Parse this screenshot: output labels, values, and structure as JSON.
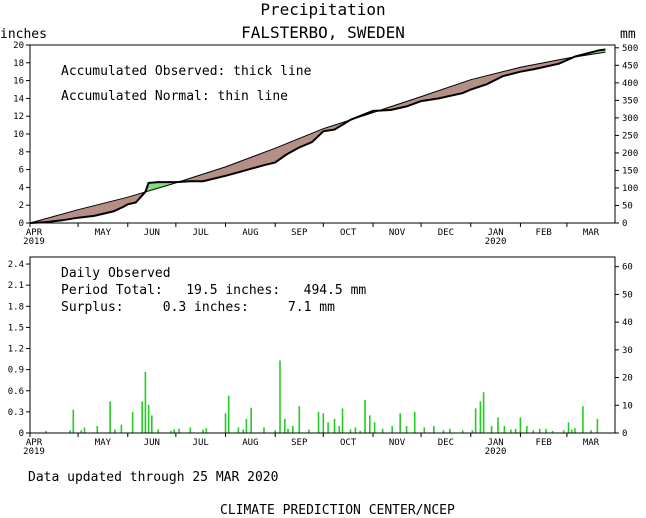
{
  "title": "Precipitation",
  "subtitle": "FALSTERBO, SWEDEN",
  "updated_text": "Data updated through 25 MAR 2020",
  "credit": "CLIMATE PREDICTION CENTER/NCEP",
  "colors": {
    "deficit_fill": "#b58f86",
    "surplus_fill": "#7fe07a",
    "daily_bar": "#22cc22",
    "axis": "#000000"
  },
  "chart_data": [
    {
      "type": "area",
      "left_unit_label": "inches",
      "right_unit_label": "mm",
      "annotations": [
        "Accumulated Observed: thick line",
        "Accumulated Normal: thin line"
      ],
      "x_tick_labels": [
        "APR",
        "MAY",
        "JUN",
        "JUL",
        "AUG",
        "SEP",
        "OCT",
        "NOV",
        "DEC",
        "JAN",
        "FEB",
        "MAR"
      ],
      "x_year_labels": [
        {
          "month": "APR",
          "year": "2019"
        },
        {
          "month": "JAN",
          "year": "2020"
        }
      ],
      "x_range_days": [
        0,
        365
      ],
      "month_start_days": [
        0,
        30,
        61,
        91,
        122,
        153,
        183,
        214,
        244,
        275,
        306,
        335
      ],
      "ylim_left": [
        0,
        20
      ],
      "y_ticks_left": [
        0,
        2,
        4,
        6,
        8,
        10,
        12,
        14,
        16,
        18,
        20
      ],
      "ylim_right": [
        0,
        508
      ],
      "y_ticks_right": [
        0,
        50,
        100,
        150,
        200,
        250,
        300,
        350,
        400,
        450,
        500
      ],
      "series": [
        {
          "name": "Accumulated Observed",
          "x_days": [
            0,
            10,
            20,
            30,
            40,
            52,
            58,
            61,
            66,
            72,
            74,
            80,
            91,
            100,
            108,
            122,
            130,
            138,
            146,
            153,
            160,
            168,
            176,
            183,
            190,
            200,
            214,
            225,
            235,
            244,
            255,
            270,
            275,
            285,
            295,
            306,
            315,
            330,
            340,
            355,
            359
          ],
          "values": [
            0.0,
            0.1,
            0.3,
            0.6,
            0.8,
            1.3,
            1.8,
            2.1,
            2.3,
            3.5,
            4.5,
            4.6,
            4.6,
            4.7,
            4.7,
            5.3,
            5.7,
            6.1,
            6.5,
            6.8,
            7.7,
            8.5,
            9.1,
            10.3,
            10.5,
            11.6,
            12.6,
            12.7,
            13.1,
            13.7,
            14.0,
            14.6,
            15.0,
            15.6,
            16.5,
            17.0,
            17.3,
            17.9,
            18.7,
            19.4,
            19.5
          ]
        },
        {
          "name": "Accumulated Normal",
          "x_days": [
            0,
            30,
            61,
            91,
            122,
            153,
            183,
            214,
            244,
            275,
            306,
            335,
            359
          ],
          "values": [
            0.0,
            1.5,
            2.9,
            4.5,
            6.3,
            8.4,
            10.6,
            12.4,
            14.2,
            16.1,
            17.5,
            18.5,
            19.2
          ]
        }
      ]
    },
    {
      "type": "bar",
      "annotations": [
        "Daily Observed",
        "Period Total:   19.5 inches:   494.5 mm",
        "Surplus:     0.3 inches:     7.1 mm"
      ],
      "period_total_inches": 19.5,
      "period_total_mm": 494.5,
      "surplus_inches": 0.3,
      "surplus_mm": 7.1,
      "x_tick_labels": [
        "APR",
        "MAY",
        "JUN",
        "JUL",
        "AUG",
        "SEP",
        "OCT",
        "NOV",
        "DEC",
        "JAN",
        "FEB",
        "MAR"
      ],
      "x_year_labels": [
        {
          "month": "APR",
          "year": "2019"
        },
        {
          "month": "JAN",
          "year": "2020"
        }
      ],
      "ylim_left": [
        0,
        2.5
      ],
      "y_ticks_left": [
        "0",
        "0.3",
        "0.6",
        "0.9",
        "1.2",
        "1.5",
        "1.8",
        "2.1",
        "2.4"
      ],
      "ylim_right": [
        0,
        63.5
      ],
      "y_ticks_right": [
        0,
        10,
        20,
        30,
        40,
        50,
        60
      ],
      "x_days": [
        10,
        25,
        27,
        32,
        34,
        42,
        50,
        53,
        57,
        64,
        70,
        72,
        74,
        76,
        80,
        88,
        90,
        93,
        100,
        108,
        110,
        122,
        124,
        130,
        133,
        135,
        138,
        146,
        153,
        156,
        159,
        161,
        164,
        168,
        174,
        180,
        183,
        186,
        190,
        193,
        195,
        200,
        203,
        206,
        209,
        212,
        215,
        220,
        226,
        231,
        235,
        240,
        246,
        252,
        258,
        262,
        270,
        276,
        278,
        281,
        283,
        288,
        292,
        296,
        300,
        303,
        306,
        310,
        314,
        318,
        322,
        326,
        333,
        336,
        338,
        340,
        345,
        350,
        354
      ],
      "values_inches": [
        0.03,
        0.04,
        0.33,
        0.04,
        0.08,
        0.1,
        0.45,
        0.05,
        0.12,
        0.3,
        0.45,
        0.87,
        0.4,
        0.25,
        0.05,
        0.03,
        0.05,
        0.06,
        0.08,
        0.05,
        0.07,
        0.28,
        0.53,
        0.08,
        0.05,
        0.2,
        0.36,
        0.08,
        0.04,
        1.03,
        0.2,
        0.06,
        0.1,
        0.38,
        0.05,
        0.3,
        0.28,
        0.15,
        0.2,
        0.1,
        0.35,
        0.05,
        0.08,
        0.03,
        0.47,
        0.25,
        0.15,
        0.06,
        0.1,
        0.28,
        0.1,
        0.3,
        0.08,
        0.1,
        0.04,
        0.06,
        0.04,
        0.04,
        0.35,
        0.45,
        0.58,
        0.1,
        0.22,
        0.1,
        0.05,
        0.06,
        0.22,
        0.1,
        0.04,
        0.06,
        0.06,
        0.03,
        0.04,
        0.15,
        0.05,
        0.07,
        0.38,
        0.04,
        0.2
      ]
    }
  ]
}
